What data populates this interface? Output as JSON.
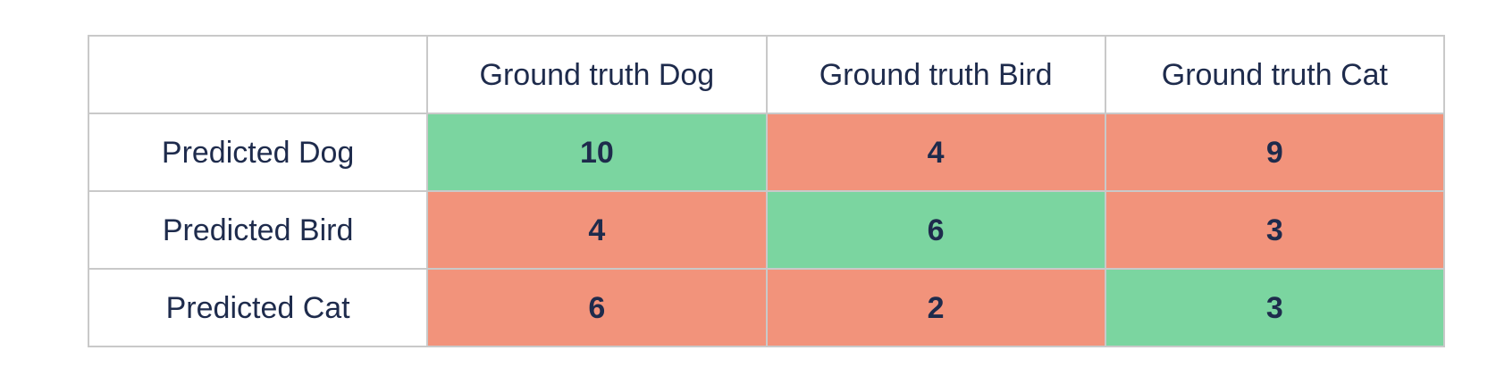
{
  "chart_data": {
    "type": "table",
    "subtype": "confusion-matrix",
    "title": "",
    "corner_label": "",
    "column_headers": [
      "Ground truth Dog",
      "Ground truth Bird",
      "Ground truth Cat"
    ],
    "row_headers": [
      "Predicted Dog",
      "Predicted Bird",
      "Predicted Cat"
    ],
    "values": [
      [
        10,
        4,
        9
      ],
      [
        4,
        6,
        3
      ],
      [
        6,
        2,
        3
      ]
    ],
    "cell_states": [
      [
        "correct",
        "incorrect",
        "incorrect"
      ],
      [
        "incorrect",
        "correct",
        "incorrect"
      ],
      [
        "incorrect",
        "incorrect",
        "correct"
      ]
    ],
    "colors": {
      "correct_bg": "#7bd5a0",
      "incorrect_bg": "#f2937b",
      "text": "#1e2b4c",
      "border": "#c9c9c9",
      "header_bg": "#ffffff"
    }
  }
}
